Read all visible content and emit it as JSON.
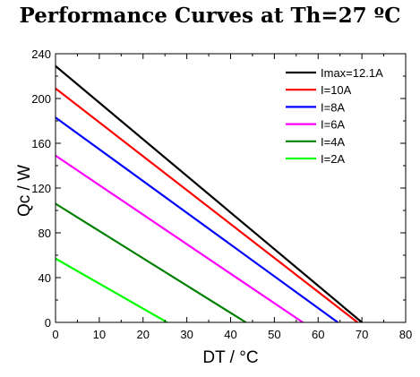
{
  "chart_data": {
    "type": "line",
    "title": "Performance Curves at Th=27 ºC",
    "xlabel": "DT / °C",
    "ylabel": "Qc / W",
    "xlim": [
      0,
      80
    ],
    "ylim": [
      0,
      240
    ],
    "xticks": [
      0,
      10,
      20,
      30,
      40,
      50,
      60,
      70,
      80
    ],
    "yticks": [
      0,
      40,
      80,
      120,
      160,
      200,
      240
    ],
    "grid": false,
    "legend_position": "top-right",
    "series": [
      {
        "name": "Imax=12.1A",
        "color": "#000000",
        "x": [
          0,
          70
        ],
        "y": [
          229,
          0
        ]
      },
      {
        "name": "I=10A",
        "color": "#ff0000",
        "x": [
          0,
          69
        ],
        "y": [
          209,
          0
        ]
      },
      {
        "name": "I=8A",
        "color": "#0000ff",
        "x": [
          0,
          64.5
        ],
        "y": [
          183,
          0
        ]
      },
      {
        "name": "I=6A",
        "color": "#ff00ff",
        "x": [
          0,
          56.5
        ],
        "y": [
          149,
          0
        ]
      },
      {
        "name": "I=4A",
        "color": "#008000",
        "x": [
          0,
          43.5
        ],
        "y": [
          106,
          0
        ]
      },
      {
        "name": "I=2A",
        "color": "#00ff00",
        "x": [
          0,
          25.5
        ],
        "y": [
          57,
          0
        ]
      }
    ]
  }
}
